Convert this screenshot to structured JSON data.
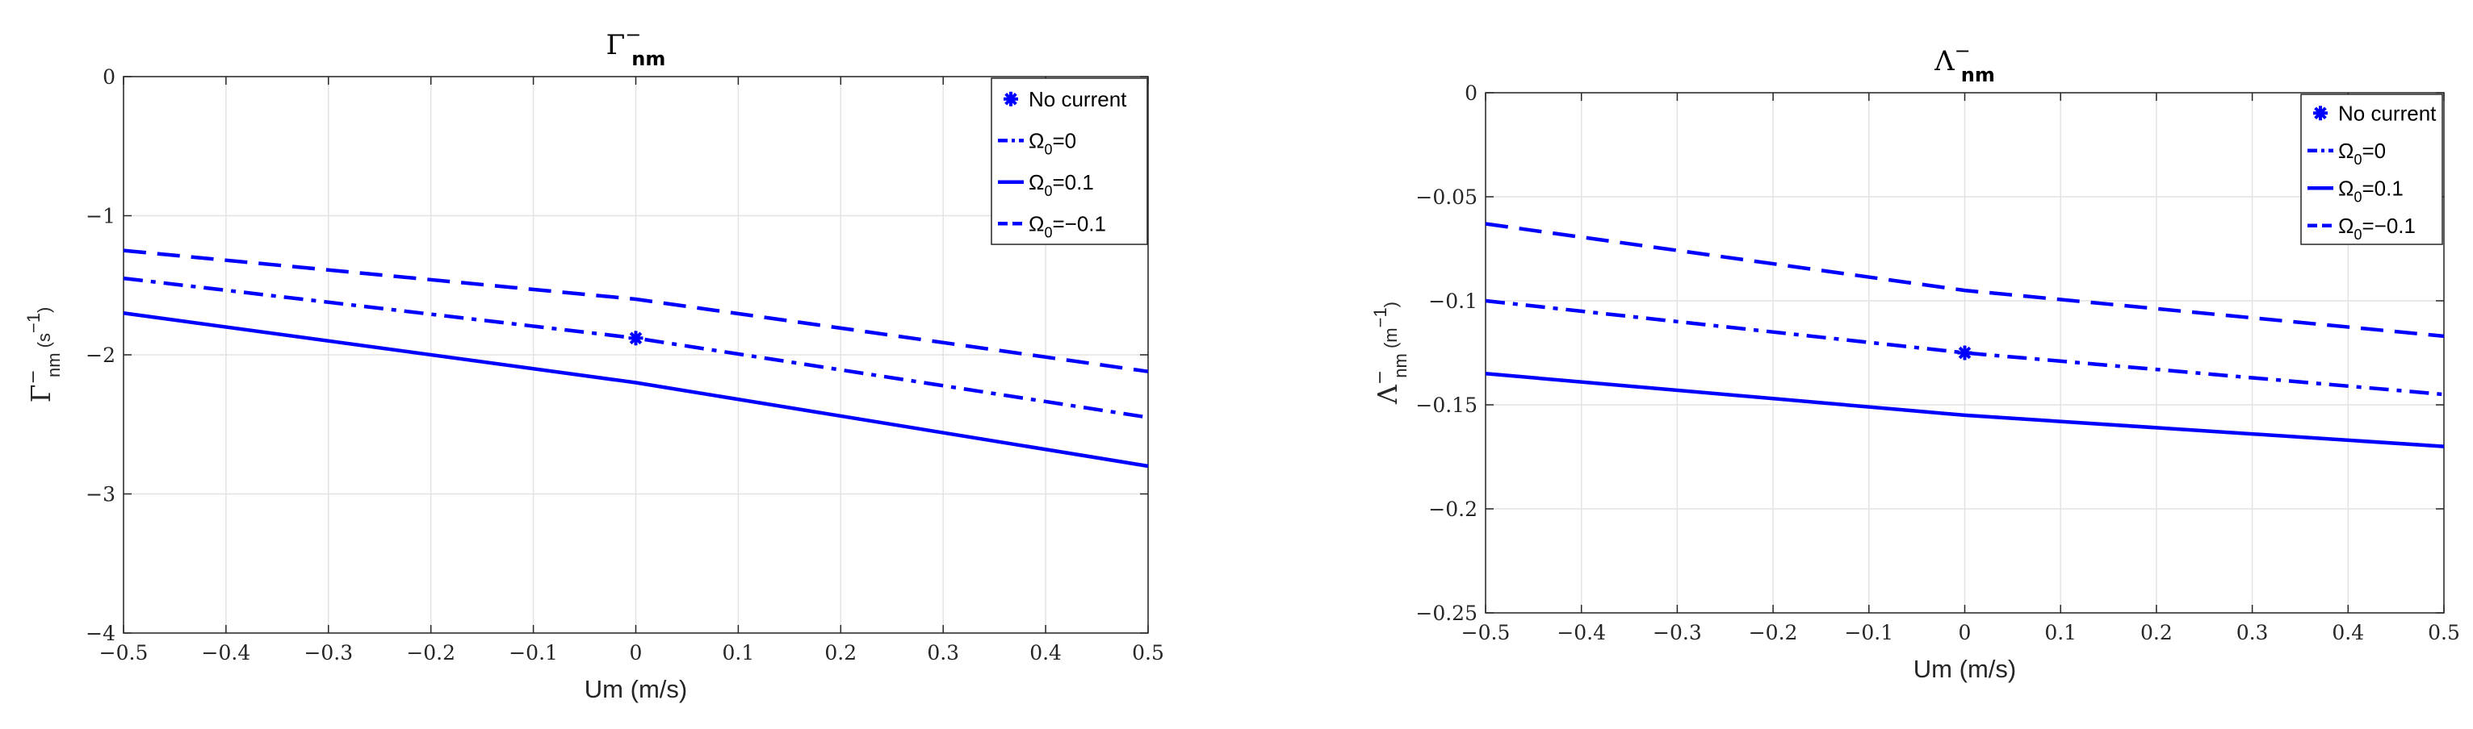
{
  "chart_data": [
    {
      "type": "line",
      "title": "Γ",
      "title_sup": "−",
      "title_sub": "nm",
      "xlabel": "Um (m/s)",
      "ylabel": {
        "main": "Γ",
        "sup": "−",
        "sub": "nm",
        "unit": "(s",
        "unit_sup": "−1",
        "unit_close": ")"
      },
      "xlim": [
        -0.5,
        0.5
      ],
      "ylim": [
        -4,
        0
      ],
      "x_ticks": [
        -0.5,
        -0.4,
        -0.3,
        -0.2,
        -0.1,
        0,
        0.1,
        0.2,
        0.3,
        0.4,
        0.5
      ],
      "x_tick_labels": [
        "−0.5",
        "−0.4",
        "−0.3",
        "−0.2",
        "−0.1",
        "0",
        "0.1",
        "0.2",
        "0.3",
        "0.4",
        "0.5"
      ],
      "y_ticks": [
        -4,
        -3,
        -2,
        -1,
        0
      ],
      "y_tick_labels": [
        "−4",
        "−3",
        "−2",
        "−1",
        "0"
      ],
      "grid": true,
      "legend_position": "top-right",
      "color": "#0000ff",
      "series": [
        {
          "name": "No current",
          "style": "marker",
          "points": [
            [
              0,
              -1.88
            ]
          ]
        },
        {
          "name": "Ω0=0",
          "legend_main": "Ω",
          "legend_sub": "0",
          "legend_rest": "=0",
          "style": "dashdot",
          "points": [
            [
              -0.5,
              -1.45
            ],
            [
              0,
              -1.88
            ],
            [
              0.5,
              -2.45
            ]
          ]
        },
        {
          "name": "Ω0=0.1",
          "legend_main": "Ω",
          "legend_sub": "0",
          "legend_rest": "=0.1",
          "style": "solid",
          "points": [
            [
              -0.5,
              -1.7
            ],
            [
              0,
              -2.2
            ],
            [
              0.5,
              -2.8
            ]
          ]
        },
        {
          "name": "Ω0=−0.1",
          "legend_main": "Ω",
          "legend_sub": "0",
          "legend_rest": "=−0.1",
          "style": "dashed",
          "points": [
            [
              -0.5,
              -1.25
            ],
            [
              0,
              -1.6
            ],
            [
              0.5,
              -2.12
            ]
          ]
        }
      ]
    },
    {
      "type": "line",
      "title": "Λ",
      "title_sup": "−",
      "title_sub": "nm",
      "xlabel": "Um (m/s)",
      "ylabel": {
        "main": "Λ",
        "sup": "−",
        "sub": "nm",
        "unit": "(m",
        "unit_sup": "−1",
        "unit_close": ")"
      },
      "xlim": [
        -0.5,
        0.5
      ],
      "ylim": [
        -0.25,
        0
      ],
      "x_ticks": [
        -0.5,
        -0.4,
        -0.3,
        -0.2,
        -0.1,
        0,
        0.1,
        0.2,
        0.3,
        0.4,
        0.5
      ],
      "x_tick_labels": [
        "−0.5",
        "−0.4",
        "−0.3",
        "−0.2",
        "−0.1",
        "0",
        "0.1",
        "0.2",
        "0.3",
        "0.4",
        "0.5"
      ],
      "y_ticks": [
        -0.25,
        -0.2,
        -0.15,
        -0.1,
        -0.05,
        0
      ],
      "y_tick_labels": [
        "−0.25",
        "−0.2",
        "−0.15",
        "−0.1",
        "−0.05",
        "0"
      ],
      "grid": true,
      "legend_position": "top-right",
      "color": "#0000ff",
      "series": [
        {
          "name": "No current",
          "style": "marker",
          "points": [
            [
              0,
              -0.125
            ]
          ]
        },
        {
          "name": "Ω0=0",
          "legend_main": "Ω",
          "legend_sub": "0",
          "legend_rest": "=0",
          "style": "dashdot",
          "points": [
            [
              -0.5,
              -0.1
            ],
            [
              0,
              -0.125
            ],
            [
              0.5,
              -0.145
            ]
          ]
        },
        {
          "name": "Ω0=0.1",
          "legend_main": "Ω",
          "legend_sub": "0",
          "legend_rest": "=0.1",
          "style": "solid",
          "points": [
            [
              -0.5,
              -0.135
            ],
            [
              0,
              -0.155
            ],
            [
              0.5,
              -0.17
            ]
          ]
        },
        {
          "name": "Ω0=−0.1",
          "legend_main": "Ω",
          "legend_sub": "0",
          "legend_rest": "=−0.1",
          "style": "dashed",
          "points": [
            [
              -0.5,
              -0.063
            ],
            [
              0,
              -0.095
            ],
            [
              0.5,
              -0.117
            ]
          ]
        }
      ]
    }
  ]
}
